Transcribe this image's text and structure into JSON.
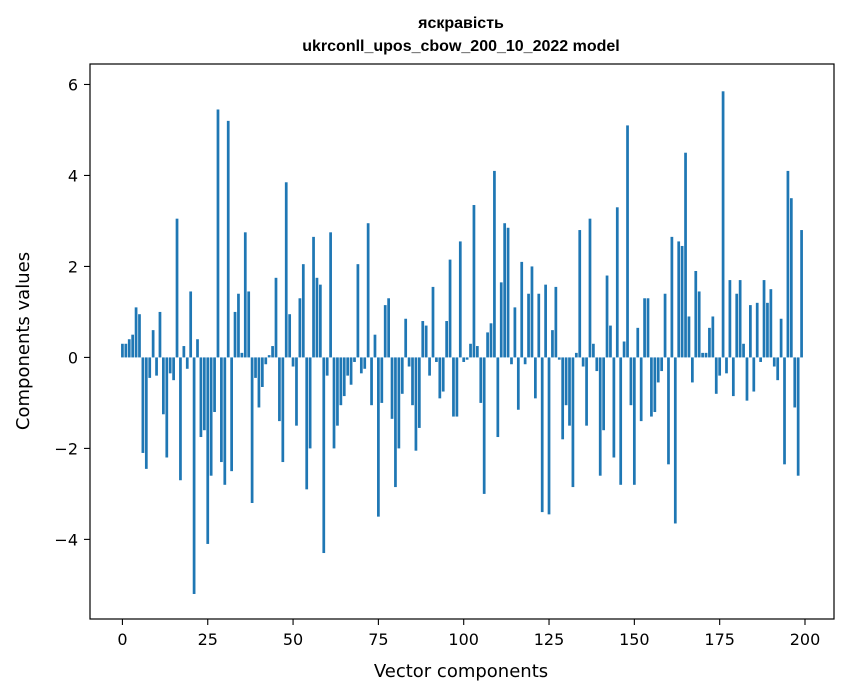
{
  "chart_data": {
    "type": "bar",
    "title": "яскравість",
    "subtitle": "ukrconll_upos_cbow_200_10_2022 model",
    "xlabel": "Vector components",
    "ylabel": "Components values",
    "bar_color": "#1f77b4",
    "xlim": [
      -9.5,
      208.5
    ],
    "ylim": [
      -5.75,
      6.45
    ],
    "x_ticks": [
      0,
      25,
      50,
      75,
      100,
      125,
      150,
      175,
      200
    ],
    "x_tick_labels": [
      "0",
      "25",
      "50",
      "75",
      "100",
      "125",
      "150",
      "175",
      "200"
    ],
    "y_ticks": [
      -4,
      -2,
      0,
      2,
      4,
      6
    ],
    "y_tick_labels": [
      "−4",
      "−2",
      "0",
      "2",
      "4",
      "6"
    ],
    "grid": false,
    "legend": "none",
    "values": [
      0.3,
      0.3,
      0.4,
      0.5,
      1.1,
      0.95,
      -2.1,
      -2.45,
      -0.45,
      0.6,
      -0.4,
      1.0,
      -1.25,
      -2.2,
      -0.35,
      -0.5,
      3.05,
      -2.7,
      0.25,
      -0.25,
      1.45,
      -5.2,
      0.4,
      -1.75,
      -1.6,
      -4.1,
      -2.6,
      -1.2,
      5.45,
      -2.3,
      -2.8,
      5.2,
      -2.5,
      1.0,
      1.4,
      0.1,
      2.75,
      1.45,
      -3.2,
      -0.45,
      -1.1,
      -0.65,
      -0.15,
      0.05,
      0.25,
      1.75,
      -1.4,
      -2.3,
      3.85,
      0.95,
      -0.2,
      -1.5,
      1.3,
      2.05,
      -2.9,
      -2.0,
      2.65,
      1.75,
      1.6,
      -4.3,
      -0.4,
      2.75,
      -2.0,
      -1.5,
      -1.05,
      -0.85,
      -0.4,
      -0.6,
      -0.1,
      2.05,
      -0.35,
      -0.25,
      2.95,
      -1.05,
      0.5,
      -3.5,
      -1.0,
      1.15,
      1.3,
      -1.35,
      -2.85,
      -2.0,
      -0.8,
      0.85,
      -0.2,
      -1.05,
      -2.05,
      -1.55,
      0.8,
      0.7,
      -0.4,
      1.55,
      -0.1,
      -0.9,
      -0.75,
      0.8,
      2.15,
      -1.3,
      -1.3,
      2.55,
      -0.1,
      -0.05,
      0.3,
      3.35,
      0.25,
      -1.0,
      -3.0,
      0.55,
      0.75,
      4.1,
      -1.75,
      1.65,
      2.95,
      2.85,
      -0.15,
      1.1,
      -1.15,
      2.1,
      -0.15,
      1.4,
      2.0,
      -0.9,
      1.4,
      -3.4,
      1.6,
      -3.45,
      0.6,
      1.55,
      -0.05,
      -1.8,
      -1.05,
      -1.5,
      -2.85,
      0.1,
      2.8,
      -0.2,
      -1.5,
      3.05,
      0.3,
      -0.3,
      -2.6,
      -1.6,
      1.8,
      0.7,
      -2.2,
      3.3,
      -2.8,
      0.35,
      5.1,
      -1.05,
      -2.8,
      0.65,
      -1.4,
      1.3,
      1.3,
      -1.3,
      -1.2,
      -0.55,
      -0.3,
      1.4,
      -2.35,
      2.65,
      -3.65,
      2.55,
      2.45,
      4.5,
      0.9,
      -0.55,
      1.9,
      1.45,
      0.1,
      0.1,
      0.65,
      0.9,
      -0.8,
      -0.4,
      5.85,
      -0.35,
      1.7,
      -0.85,
      1.4,
      1.7,
      0.3,
      -0.95,
      1.15,
      -0.75,
      1.2,
      -0.1,
      1.7,
      1.2,
      1.5,
      -0.2,
      -0.5,
      0.85,
      -2.35,
      4.1,
      3.5,
      -1.1,
      -2.6,
      2.8
    ]
  }
}
